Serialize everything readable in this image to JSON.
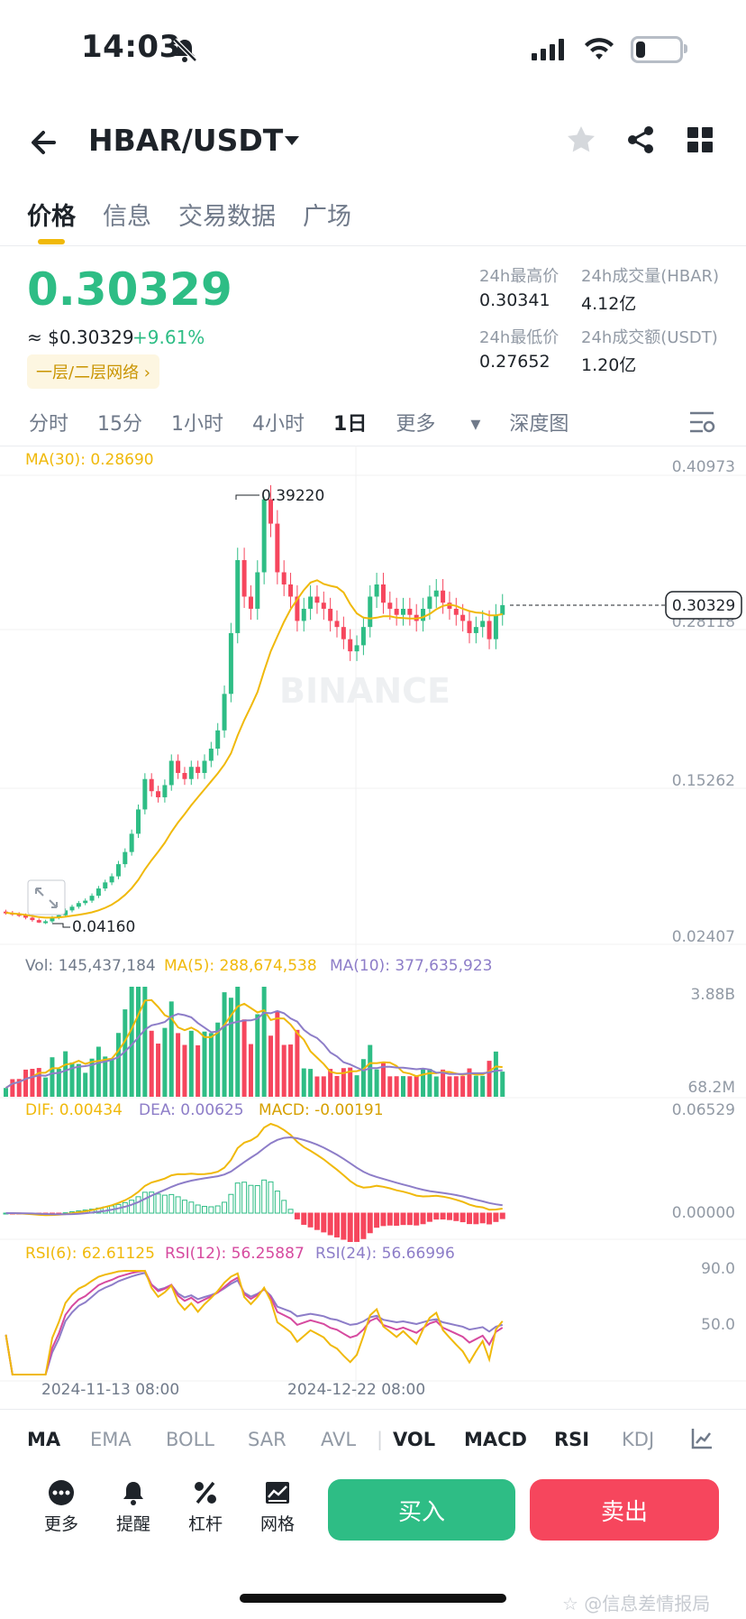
{
  "status": {
    "time": "14:03"
  },
  "header": {
    "pair": "HBAR/USDT"
  },
  "tabs": [
    "价格",
    "信息",
    "交易数据",
    "广场"
  ],
  "price": {
    "last": "0.30329",
    "usd": "≈ $0.30329",
    "change": "+9.61%",
    "network_tag": "一层/二层网络"
  },
  "stats": {
    "high_label": "24h最高价",
    "high": "0.30341",
    "vol_base_label": "24h成交量(HBAR)",
    "vol_base": "4.12亿",
    "low_label": "24h最低价",
    "low": "0.27652",
    "vol_quote_label": "24h成交额(USDT)",
    "vol_quote": "1.20亿"
  },
  "intervals": [
    "分时",
    "15分",
    "1小时",
    "4小时",
    "1日",
    "更多"
  ],
  "interval_active": "1日",
  "depth_label": "深度图",
  "main_chart": {
    "ma_label": "MA(30): 0.28690",
    "y_ticks": [
      "0.40973",
      "0.28118",
      "0.15262",
      "0.02407"
    ],
    "max_label": "0.39220",
    "min_label": "0.04160",
    "last_price_tag": "0.30329",
    "watermark": "BINANCE"
  },
  "volume_panel": {
    "vol": "Vol: 145,437,184",
    "ma5": "MA(5): 288,674,538",
    "ma10": "MA(10): 377,635,923",
    "y_top": "3.88B",
    "y_bottom": "68.2M"
  },
  "macd_panel": {
    "dif": "DIF: 0.00434",
    "dea": "DEA: 0.00625",
    "macd": "MACD: -0.00191",
    "y_top": "0.06529",
    "y_zero": "0.00000"
  },
  "rsi_panel": {
    "rsi6": "RSI(6): 62.61125",
    "rsi12": "RSI(12): 56.25887",
    "rsi24": "RSI(24): 56.66996",
    "y_top": "90.0",
    "y_mid": "50.0"
  },
  "x_labels": [
    "2024-11-13 08:00",
    "2024-12-22 08:00"
  ],
  "indicators": [
    "MA",
    "EMA",
    "BOLL",
    "SAR",
    "AVL",
    "VOL",
    "MACD",
    "RSI",
    "KDJ"
  ],
  "indicators_active": [
    "MA",
    "VOL",
    "MACD",
    "RSI"
  ],
  "actions": [
    "更多",
    "提醒",
    "杠杆",
    "网格"
  ],
  "buy_label": "买入",
  "sell_label": "卖出",
  "footer_watermark": "☆ @信息差情报局",
  "colors": {
    "up": "#2ebd85",
    "down": "#f6465d",
    "ma": "#f0b90b",
    "ma10": "#8d7dc8",
    "rsi12": "#d64a9f",
    "accent": "#f0b90b"
  },
  "chart_data": {
    "type": "candlestick",
    "y_range": [
      0.02407,
      0.40973
    ],
    "max": 0.3922,
    "min": 0.0416,
    "last": 0.30329,
    "ma30_last": 0.2869,
    "approx_closes": [
      0.05,
      0.049,
      0.048,
      0.046,
      0.044,
      0.042,
      0.043,
      0.046,
      0.048,
      0.052,
      0.055,
      0.058,
      0.06,
      0.064,
      0.07,
      0.075,
      0.08,
      0.09,
      0.1,
      0.115,
      0.135,
      0.16,
      0.15,
      0.145,
      0.155,
      0.175,
      0.165,
      0.16,
      0.17,
      0.165,
      0.175,
      0.185,
      0.2,
      0.23,
      0.28,
      0.34,
      0.31,
      0.3,
      0.33,
      0.39,
      0.37,
      0.33,
      0.32,
      0.31,
      0.29,
      0.3,
      0.31,
      0.305,
      0.3,
      0.29,
      0.285,
      0.275,
      0.265,
      0.27,
      0.285,
      0.31,
      0.32,
      0.305,
      0.3,
      0.295,
      0.3,
      0.295,
      0.29,
      0.3,
      0.31,
      0.315,
      0.305,
      0.3,
      0.295,
      0.29,
      0.28,
      0.285,
      0.29,
      0.275,
      0.295,
      0.303
    ]
  }
}
